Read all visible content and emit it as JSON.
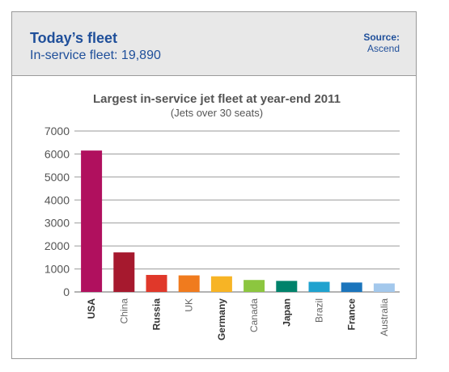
{
  "header": {
    "title": "Today’s fleet",
    "subtitle": "In-service fleet: 19,890",
    "source_label": "Source:",
    "source_value": "Ascend"
  },
  "chart_data": {
    "type": "bar",
    "title": "Largest in-service jet fleet at year-end 2011",
    "subtitle": "(Jets over 30 seats)",
    "xlabel": "",
    "ylabel": "",
    "ylim": [
      0,
      7000
    ],
    "yticks": [
      0,
      1000,
      2000,
      3000,
      4000,
      5000,
      6000,
      7000
    ],
    "grid": true,
    "legend": "none",
    "categories": [
      "USA",
      "China",
      "Russia",
      "UK",
      "Germany",
      "Canada",
      "Japan",
      "Brazil",
      "France",
      "Australia"
    ],
    "bold_categories": [
      "USA",
      "Russia",
      "Germany",
      "Japan",
      "France"
    ],
    "values": [
      6150,
      1720,
      740,
      720,
      680,
      520,
      480,
      440,
      410,
      370
    ],
    "colors": [
      "#b0105e",
      "#a6192e",
      "#e0382a",
      "#f07b1e",
      "#f7b425",
      "#8cc63f",
      "#00826b",
      "#1fa2cf",
      "#1b75bc",
      "#a3c8ec"
    ]
  }
}
